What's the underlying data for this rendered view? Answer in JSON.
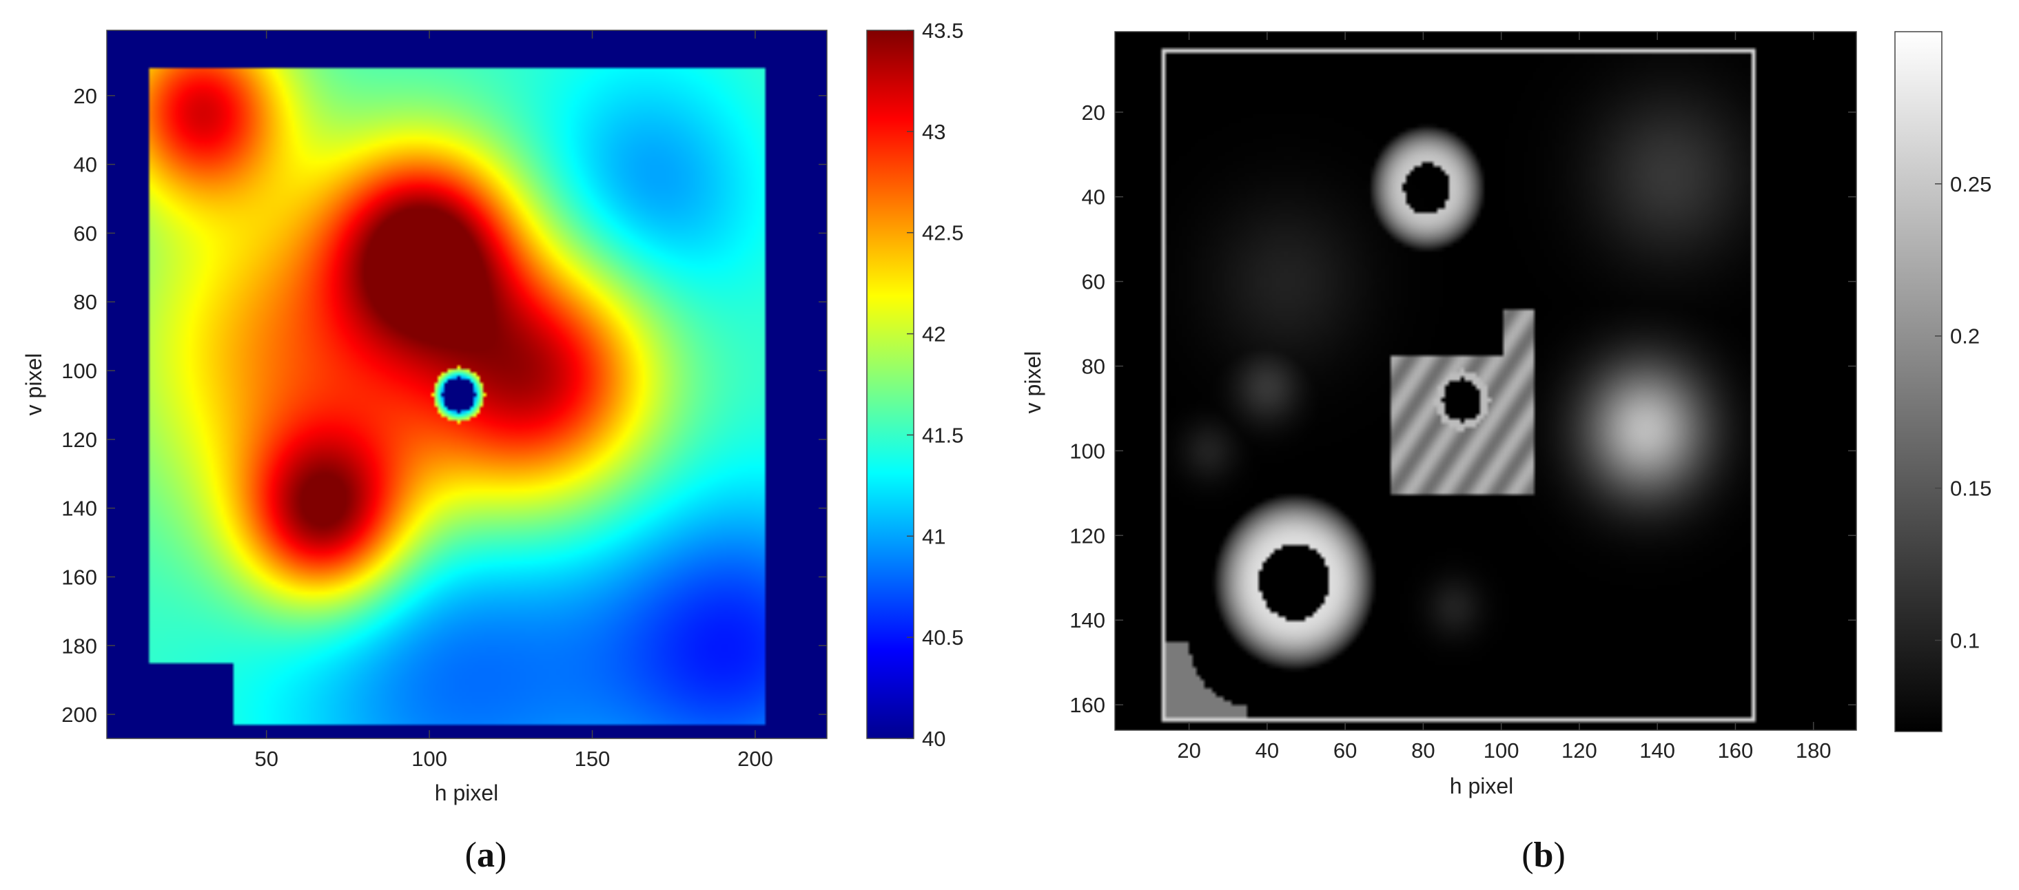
{
  "chart_data": [
    {
      "type": "heatmap",
      "panel_label": "a",
      "xlabel": "h pixel",
      "ylabel": "v pixel",
      "xlim": [
        1,
        222
      ],
      "ylim": [
        1,
        207
      ],
      "y_reversed": true,
      "xticks": [
        50,
        100,
        150,
        200
      ],
      "yticks": [
        20,
        40,
        60,
        80,
        100,
        120,
        140,
        160,
        180,
        200
      ],
      "colormap": "jet",
      "colorbar": {
        "min": 40,
        "max": 43.5,
        "ticks": [
          40,
          40.5,
          41,
          41.5,
          42,
          42.5,
          43,
          43.5
        ]
      },
      "plate_bounds": {
        "x": [
          14,
          203
        ],
        "y": [
          12,
          203
        ]
      },
      "background_value": 40,
      "base_value": 41.5,
      "features": [
        {
          "x": 30,
          "y": 24,
          "value": 43.1,
          "sigma": 18
        },
        {
          "x": 99,
          "y": 64,
          "value": 43.4,
          "sigma": 20
        },
        {
          "x": 60,
          "y": 95,
          "value": 42.6,
          "sigma": 35
        },
        {
          "x": 68,
          "y": 143,
          "value": 43.3,
          "sigma": 18
        },
        {
          "x": 125,
          "y": 110,
          "value": 42.6,
          "sigma": 28
        },
        {
          "x": 140,
          "y": 98,
          "value": 42.3,
          "sigma": 22
        },
        {
          "x": 170,
          "y": 45,
          "value": 40.9,
          "sigma": 25
        },
        {
          "x": 190,
          "y": 35,
          "value": 41.6,
          "sigma": 25
        },
        {
          "x": 110,
          "y": 185,
          "value": 40.8,
          "sigma": 40
        },
        {
          "x": 195,
          "y": 180,
          "value": 40.6,
          "sigma": 30
        }
      ],
      "hole": {
        "x": 109,
        "y": 107,
        "radius": 5,
        "value": 40
      }
    },
    {
      "type": "heatmap",
      "panel_label": "b",
      "xlabel": "h pixel",
      "ylabel": "v pixel",
      "xlim": [
        1,
        191
      ],
      "ylim": [
        1,
        166
      ],
      "y_reversed": true,
      "xticks": [
        20,
        40,
        60,
        80,
        100,
        120,
        140,
        160,
        180
      ],
      "yticks": [
        20,
        40,
        60,
        80,
        100,
        120,
        140,
        160
      ],
      "colormap": "gray",
      "colorbar": {
        "min": 0.07,
        "max": 0.3,
        "ticks": [
          0.1,
          0.15,
          0.2,
          0.25
        ]
      },
      "plate_bounds": {
        "x": [
          13,
          165
        ],
        "y": [
          5,
          164
        ]
      },
      "background_value": 0.07,
      "features": [
        {
          "type": "ring",
          "x": 81,
          "y": 38,
          "inner": 6,
          "outer": 15,
          "value": 0.25
        },
        {
          "type": "ring",
          "x": 47,
          "y": 131,
          "inner": 9,
          "outer": 21,
          "value": 0.27
        },
        {
          "type": "blob",
          "x": 137,
          "y": 95,
          "sigma": 11,
          "value": 0.24
        },
        {
          "type": "square",
          "x": [
            72,
            108
          ],
          "y": [
            67,
            110
          ],
          "value": 0.2
        },
        {
          "type": "blob",
          "x": 143,
          "y": 35,
          "sigma": 14,
          "value": 0.12
        },
        {
          "type": "blob",
          "x": 45,
          "y": 60,
          "sigma": 14,
          "value": 0.1
        },
        {
          "type": "blob",
          "x": 40,
          "y": 85,
          "sigma": 6,
          "value": 0.12
        },
        {
          "type": "blob",
          "x": 25,
          "y": 100,
          "sigma": 5,
          "value": 0.1
        },
        {
          "type": "blob",
          "x": 88,
          "y": 137,
          "sigma": 5,
          "value": 0.1
        }
      ]
    }
  ]
}
